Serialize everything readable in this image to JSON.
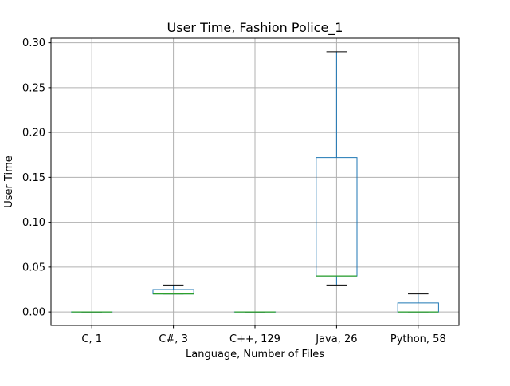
{
  "chart_data": {
    "type": "box",
    "title": "User Time, Fashion Police_1",
    "xlabel": "Language, Number of Files",
    "ylabel": "User Time",
    "ylim": [
      -0.015,
      0.305
    ],
    "yticks": [
      0.0,
      0.05,
      0.1,
      0.15,
      0.2,
      0.25,
      0.3
    ],
    "ytick_labels": [
      "0.00",
      "0.05",
      "0.10",
      "0.15",
      "0.20",
      "0.25",
      "0.30"
    ],
    "grid": true,
    "legend": "none",
    "categories": [
      "C, 1",
      "C#, 3",
      "C++, 129",
      "Java, 26",
      "Python, 58"
    ],
    "boxes": [
      {
        "category": "C, 1",
        "whisker_low": 0.0,
        "q1": 0.0,
        "median": 0.0,
        "q3": 0.0,
        "whisker_high": 0.0
      },
      {
        "category": "C#, 3",
        "whisker_low": 0.02,
        "q1": 0.02,
        "median": 0.02,
        "q3": 0.025,
        "whisker_high": 0.03
      },
      {
        "category": "C++, 129",
        "whisker_low": 0.0,
        "q1": 0.0,
        "median": 0.0,
        "q3": 0.0,
        "whisker_high": 0.0
      },
      {
        "category": "Java, 26",
        "whisker_low": 0.03,
        "q1": 0.04,
        "median": 0.04,
        "q3": 0.172,
        "whisker_high": 0.29
      },
      {
        "category": "Python, 58",
        "whisker_low": 0.0,
        "q1": 0.0,
        "median": 0.0,
        "q3": 0.01,
        "whisker_high": 0.02
      }
    ],
    "colors": {
      "box": "#1f77b4",
      "median": "#2ca02c",
      "whisker_cap": "#000000",
      "grid": "#b0b0b0"
    }
  }
}
